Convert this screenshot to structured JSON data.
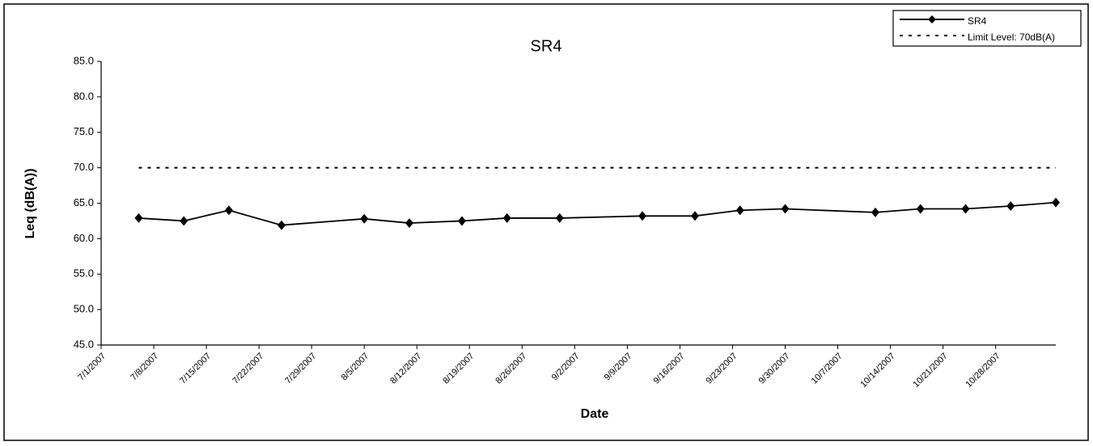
{
  "chart_data": {
    "type": "line",
    "title": "SR4",
    "x_label": "Date",
    "y_label": "Leq (dB(A))",
    "x": [
      "7/6/2007",
      "7/12/2007",
      "7/18/2007",
      "7/25/2007",
      "8/5/2007",
      "8/11/2007",
      "8/18/2007",
      "8/24/2007",
      "8/31/2007",
      "9/11/2007",
      "9/18/2007",
      "9/24/2007",
      "9/30/2007",
      "10/12/2007",
      "10/18/2007",
      "10/24/2007",
      "10/30/2007",
      "11/5/2007"
    ],
    "series": [
      {
        "name": "SR4",
        "color": "#000000",
        "marker": "diamond",
        "dashed": false,
        "values": [
          62.9,
          62.5,
          64.0,
          61.9,
          62.8,
          62.2,
          62.5,
          62.9,
          62.9,
          63.2,
          63.2,
          64.0,
          64.2,
          63.7,
          64.2,
          64.2,
          64.6,
          65.1
        ]
      },
      {
        "name": "Limit Level: 70dB(A)",
        "color": "#000000",
        "marker": "none",
        "dashed": true,
        "values": [
          70,
          70,
          70,
          70,
          70,
          70,
          70,
          70,
          70,
          70,
          70,
          70,
          70,
          70,
          70,
          70,
          70,
          70
        ]
      }
    ],
    "xlim": [
      "7/1/2007",
      "11/5/2007"
    ],
    "xticks": [
      "7/1/2007",
      "7/8/2007",
      "7/15/2007",
      "7/22/2007",
      "7/29/2007",
      "8/5/2007",
      "8/12/2007",
      "8/19/2007",
      "8/26/2007",
      "9/2/2007",
      "9/9/2007",
      "9/16/2007",
      "9/23/2007",
      "9/30/2007",
      "10/7/2007",
      "10/14/2007",
      "10/21/2007",
      "10/28/2007"
    ],
    "ylim": [
      45,
      85
    ],
    "yticks": [
      {
        "value": 45,
        "label": "45.0"
      },
      {
        "value": 50,
        "label": "50.0"
      },
      {
        "value": 55,
        "label": "55.0"
      },
      {
        "value": 60,
        "label": "60.0"
      },
      {
        "value": 65,
        "label": "65.0"
      },
      {
        "value": 70,
        "label": "70.0"
      },
      {
        "value": 75,
        "label": "75.0"
      },
      {
        "value": 80,
        "label": "80.0"
      },
      {
        "value": 85,
        "label": "85.0"
      }
    ],
    "grid": false,
    "legend": "top-right"
  }
}
